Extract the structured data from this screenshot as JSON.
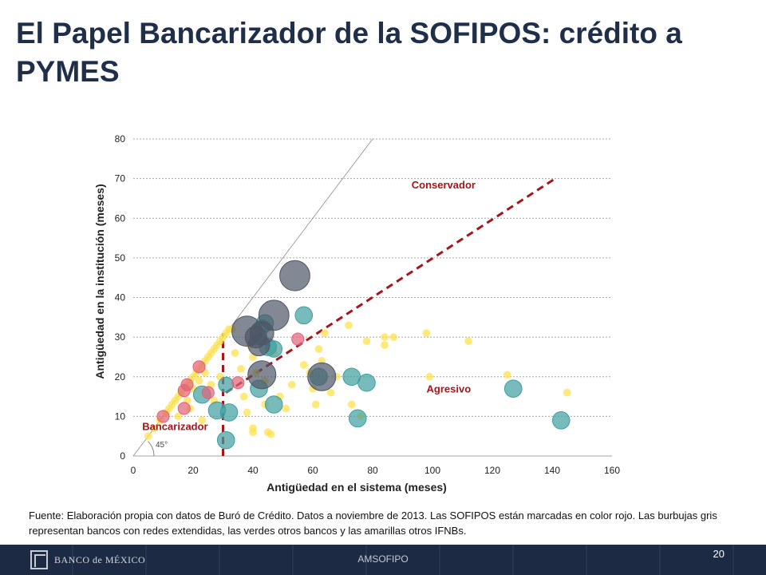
{
  "slide": {
    "title": "El Papel Bancarizador de la SOFIPOS: crédito a PYMES",
    "source": "Fuente: Elaboración propia con datos de Buró de Crédito. Datos a noviembre de 2013. Las SOFIPOS están marcadas en color rojo. Las burbujas gris representan bancos con redes extendidas, las verdes otros bancos y las amarillas otros IFNBs.",
    "footer_label": "AMSOFIPO",
    "logo_text": "BANCO de MÉXICO",
    "page_number": "20"
  },
  "chart_data": {
    "type": "scatter",
    "xlabel": "Antigüedad en el sistema (meses)",
    "ylabel": "Antigüedad en la institución (meses)",
    "xlim": [
      0,
      160
    ],
    "ylim": [
      0,
      80
    ],
    "xticks": [
      "0",
      "20",
      "40",
      "60",
      "80",
      "100",
      "120",
      "140",
      "160"
    ],
    "yticks": [
      "0",
      "10",
      "20",
      "30",
      "40",
      "50",
      "60",
      "70",
      "80"
    ],
    "grid": "horizontal dotted",
    "angle_label": "45°",
    "annotations": [
      {
        "text": "Conservador",
        "x": 93,
        "y": 67.5,
        "color": "#a3161a"
      },
      {
        "text": "Agresivo",
        "x": 98,
        "y": 16,
        "color": "#a3161a"
      },
      {
        "text": "Bancarizador",
        "x": 3,
        "y": 6.5,
        "color": "#a3161a"
      }
    ],
    "reference_lines": [
      {
        "name": "diagonal-45",
        "from": [
          0,
          0
        ],
        "to": [
          80,
          80
        ],
        "style": "thin-gray"
      },
      {
        "name": "vertical-threshold",
        "from": [
          30,
          0
        ],
        "to": [
          30,
          31
        ],
        "style": "dashed-red"
      },
      {
        "name": "aggressive-line",
        "from": [
          31,
          16
        ],
        "to": [
          141,
          70
        ],
        "style": "dashed-red"
      }
    ],
    "colors": {
      "gray": "#4d5666",
      "green": "#3f9ea0",
      "yellow": "#ffe14d",
      "red": "#e36179",
      "line": "#a3161a"
    },
    "series": [
      {
        "group": "gray",
        "points": [
          [
            54,
            45.5,
            7
          ],
          [
            47,
            35.5,
            7
          ],
          [
            38,
            31.5,
            7
          ],
          [
            43,
            20.5,
            6.5
          ],
          [
            63,
            20,
            6.5
          ],
          [
            42,
            28,
            5
          ],
          [
            43,
            31,
            5.5
          ],
          [
            41,
            30,
            5
          ]
        ]
      },
      {
        "group": "green",
        "points": [
          [
            57,
            35.5,
            4
          ],
          [
            44,
            33.5,
            4
          ],
          [
            45,
            27.5,
            4
          ],
          [
            47,
            27,
            3.8
          ],
          [
            62,
            20,
            4
          ],
          [
            73,
            20,
            4
          ],
          [
            78,
            18.5,
            4
          ],
          [
            42,
            17,
            4
          ],
          [
            47,
            13,
            4
          ],
          [
            32,
            11,
            4
          ],
          [
            28,
            11.5,
            4
          ],
          [
            23,
            15.5,
            4
          ],
          [
            31,
            4,
            4
          ],
          [
            75,
            9.5,
            4
          ],
          [
            143,
            9,
            4
          ],
          [
            127,
            17,
            4
          ],
          [
            31,
            18,
            3.5
          ],
          [
            43,
            32.5,
            3.5
          ]
        ]
      },
      {
        "group": "red",
        "points": [
          [
            10,
            10,
            2.8
          ],
          [
            17,
            12,
            2.8
          ],
          [
            17,
            16.5,
            2.8
          ],
          [
            18,
            18,
            2.8
          ],
          [
            22,
            22.5,
            2.8
          ],
          [
            25,
            16,
            2.8
          ],
          [
            35,
            18.5,
            2.8
          ],
          [
            55,
            29.5,
            2.8
          ]
        ]
      },
      {
        "group": "yellow",
        "points": [
          [
            5,
            5,
            1.8
          ],
          [
            7,
            7,
            1.8
          ],
          [
            9,
            9,
            1.8
          ],
          [
            11,
            11,
            1.8
          ],
          [
            12,
            12,
            1.8
          ],
          [
            13,
            13,
            1.8
          ],
          [
            14,
            14,
            1.8
          ],
          [
            15,
            15,
            1.8
          ],
          [
            16,
            16,
            1.8
          ],
          [
            17,
            17,
            1.8
          ],
          [
            18,
            18,
            1.8
          ],
          [
            19,
            19,
            1.8
          ],
          [
            20,
            20,
            1.8
          ],
          [
            21,
            21,
            1.8
          ],
          [
            22,
            22,
            1.8
          ],
          [
            23,
            23,
            1.8
          ],
          [
            24,
            24,
            1.8
          ],
          [
            25,
            25,
            1.8
          ],
          [
            26,
            26,
            1.8
          ],
          [
            27,
            27,
            1.8
          ],
          [
            28,
            28,
            1.8
          ],
          [
            29,
            29,
            1.8
          ],
          [
            30,
            30,
            1.8
          ],
          [
            31,
            31,
            1.8
          ],
          [
            32,
            32,
            1.8
          ],
          [
            33,
            32,
            1.8
          ],
          [
            15,
            10,
            1.8
          ],
          [
            18,
            14,
            1.8
          ],
          [
            20,
            17,
            1.8
          ],
          [
            22,
            19,
            1.8
          ],
          [
            24,
            21,
            1.8
          ],
          [
            26,
            18,
            1.8
          ],
          [
            27,
            14,
            1.8
          ],
          [
            29,
            20,
            1.8
          ],
          [
            19,
            12,
            1.8
          ],
          [
            23,
            9,
            1.8
          ],
          [
            34,
            26,
            1.8
          ],
          [
            36,
            22,
            1.8
          ],
          [
            37,
            15,
            1.8
          ],
          [
            38,
            11,
            1.8
          ],
          [
            39,
            28,
            1.8
          ],
          [
            40,
            25,
            1.8
          ],
          [
            40,
            7,
            1.8
          ],
          [
            40,
            6,
            1.8
          ],
          [
            41,
            21,
            1.8
          ],
          [
            44,
            19,
            1.8
          ],
          [
            44,
            13,
            1.8
          ],
          [
            45,
            6,
            1.8
          ],
          [
            46,
            5.5,
            1.8
          ],
          [
            47,
            26,
            1.8
          ],
          [
            49,
            15,
            1.8
          ],
          [
            51,
            12,
            1.8
          ],
          [
            53,
            18,
            1.8
          ],
          [
            57,
            23,
            1.8
          ],
          [
            59,
            21,
            1.8
          ],
          [
            60,
            17,
            1.8
          ],
          [
            61,
            13,
            1.8
          ],
          [
            62,
            27,
            1.8
          ],
          [
            63,
            24,
            1.8
          ],
          [
            64,
            31,
            1.8
          ],
          [
            66,
            16,
            1.8
          ],
          [
            68,
            20,
            1.8
          ],
          [
            72,
            33,
            1.8
          ],
          [
            73,
            13,
            1.8
          ],
          [
            76,
            10,
            1.8
          ],
          [
            78,
            29,
            1.8
          ],
          [
            84,
            30,
            1.8
          ],
          [
            84,
            28,
            1.8
          ],
          [
            87,
            30,
            1.8
          ],
          [
            98,
            31,
            1.8
          ],
          [
            99,
            20,
            1.8
          ],
          [
            112,
            29,
            1.8
          ],
          [
            125,
            20.5,
            1.8
          ],
          [
            145,
            16,
            1.8
          ]
        ]
      }
    ]
  }
}
